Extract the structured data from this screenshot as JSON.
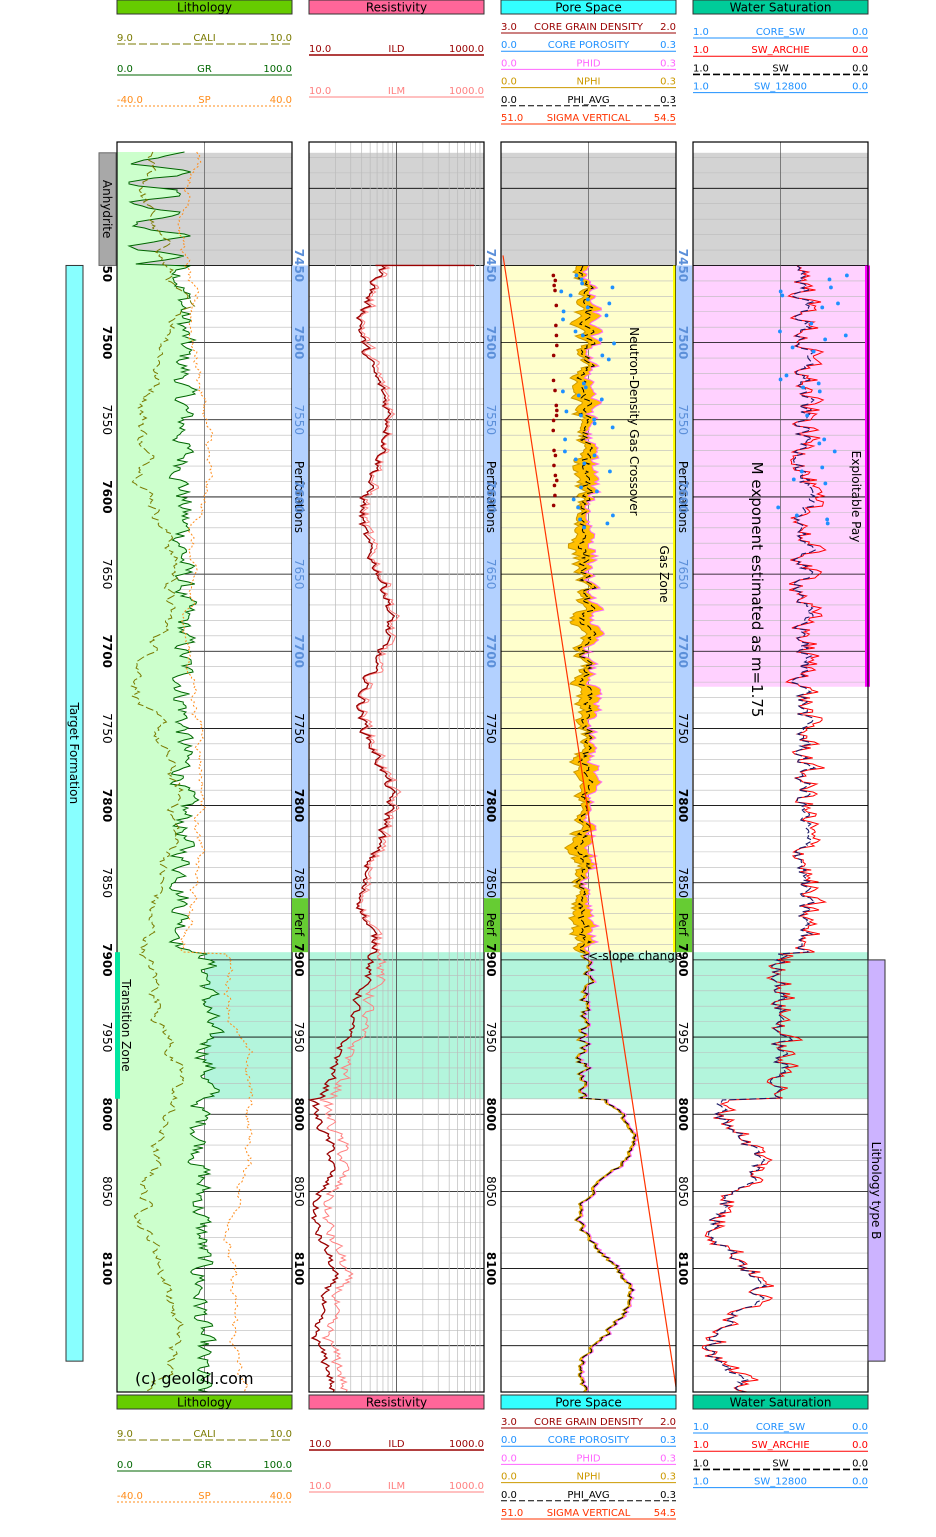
{
  "chart_data": {
    "type": "line",
    "title": "",
    "copyright": "(c) geoloil.com",
    "colors": {
      "lithology": "#66cc00",
      "resistivity": "#ff6699",
      "pore_space": "#33ffff",
      "water_saturation": "#00cc99",
      "gr_fill": "#ccffcc",
      "anhydrite": "#d3d3d3",
      "gas_zone": "#ffffcc",
      "transition_zone": "#b3f5dc",
      "exploitable_pay": "#ffd1ff",
      "crossover": "#ffbf00",
      "target_formation": "#88ffff",
      "lithology_type_b": "#ccb3ff"
    },
    "tracks": [
      {
        "id": "lithology",
        "title": "Lithology",
        "curves": [
          {
            "name": "CALI",
            "left": "9.0",
            "right": "10.0",
            "color": "#7a7a00",
            "dash": "8,3"
          },
          {
            "name": "GR",
            "left": "0.0",
            "right": "100.0",
            "color": "#006600",
            "dash": ""
          },
          {
            "name": "SP",
            "left": "-40.0",
            "right": "40.0",
            "color": "#ff8c1a",
            "dash": "2,2"
          }
        ]
      },
      {
        "id": "resistivity",
        "title": "Resistivity",
        "curves": [
          {
            "name": "ILD",
            "left": "10.0",
            "right": "1000.0",
            "color": "#990000",
            "dash": ""
          },
          {
            "name": "ILM",
            "left": "10.0",
            "right": "1000.0",
            "color": "#ff8080",
            "dash": ""
          }
        ]
      },
      {
        "id": "pore_space",
        "title": "Pore Space",
        "curves": [
          {
            "name": "CORE GRAIN DENSITY",
            "left": "3.0",
            "right": "2.0",
            "color": "#990000",
            "dash": ""
          },
          {
            "name": "CORE POROSITY",
            "left": "0.0",
            "right": "0.3",
            "color": "#1e90ff",
            "dash": ""
          },
          {
            "name": "PHID",
            "left": "0.0",
            "right": "0.3",
            "color": "#ff66ff",
            "dash": ""
          },
          {
            "name": "NPHI",
            "left": "0.0",
            "right": "0.3",
            "color": "#cc9900",
            "dash": ""
          },
          {
            "name": "PHI_AVG",
            "left": "0.0",
            "right": "0.3",
            "color": "#000000",
            "dash": "6,3"
          },
          {
            "name": "SIGMA VERTICAL",
            "left": "51.0",
            "right": "54.5",
            "color": "#ff3300",
            "dash": ""
          }
        ]
      },
      {
        "id": "water_saturation",
        "title": "Water Saturation",
        "curves": [
          {
            "name": "CORE_SW",
            "left": "1.0",
            "right": "0.0",
            "color": "#1e90ff",
            "dash": ""
          },
          {
            "name": "SW_ARCHIE",
            "left": "1.0",
            "right": "0.0",
            "color": "#ff0000",
            "dash": ""
          },
          {
            "name": "SW",
            "left": "1.0",
            "right": "0.0",
            "color": "#000000",
            "dash": "7,3"
          },
          {
            "name": "SW_12800",
            "left": "1.0",
            "right": "0.0",
            "color": "#1e90ff",
            "dash": ""
          }
        ]
      }
    ],
    "depth": {
      "min": 7370,
      "max": 8180,
      "ticks": [
        {
          "v": 7450,
          "label": "7450",
          "bold": true
        },
        {
          "v": 7500,
          "label": "7500",
          "bold": true
        },
        {
          "v": 7550,
          "label": "7550",
          "bold": false
        },
        {
          "v": 7600,
          "label": "7600",
          "bold": true
        },
        {
          "v": 7650,
          "label": "7650",
          "bold": false
        },
        {
          "v": 7700,
          "label": "7700",
          "bold": true
        },
        {
          "v": 7750,
          "label": "7750",
          "bold": false
        },
        {
          "v": 7800,
          "label": "7800",
          "bold": true
        },
        {
          "v": 7850,
          "label": "7850",
          "bold": false
        },
        {
          "v": 7900,
          "label": "7900",
          "bold": true
        },
        {
          "v": 7950,
          "label": "7950",
          "bold": false
        },
        {
          "v": 8000,
          "label": "8000",
          "bold": true
        },
        {
          "v": 8050,
          "label": "8050",
          "bold": false
        },
        {
          "v": 8100,
          "label": "8100",
          "bold": true
        }
      ]
    },
    "zones": [
      {
        "label": "Anhydrite",
        "top": 7377,
        "base": 7450
      },
      {
        "label": "Gas Zone",
        "top": 7450,
        "base": 7895
      },
      {
        "label": "Transition Zone",
        "top": 7895,
        "base": 7990
      },
      {
        "label": "Exploitable Pay",
        "top": 7450,
        "base": 7723
      }
    ],
    "annotations": {
      "target_formation": "Target Formation",
      "perforations": "Perforations",
      "perf": "Perf",
      "crossover": "Neutron-Density Gas Crossover",
      "slope_change": "<-slope change",
      "m_exponent": "M exponent estimated as m=1.75",
      "lithology_type_b": "Lithology type B"
    },
    "perforation_intervals": [
      {
        "top": 7450,
        "base": 7860
      },
      {
        "top": 7860,
        "base": 7895
      }
    ],
    "target_formation_interval": {
      "top": 7450,
      "base": 8160
    },
    "lithology_type_b_interval": {
      "top": 7900,
      "base": 8160
    }
  }
}
